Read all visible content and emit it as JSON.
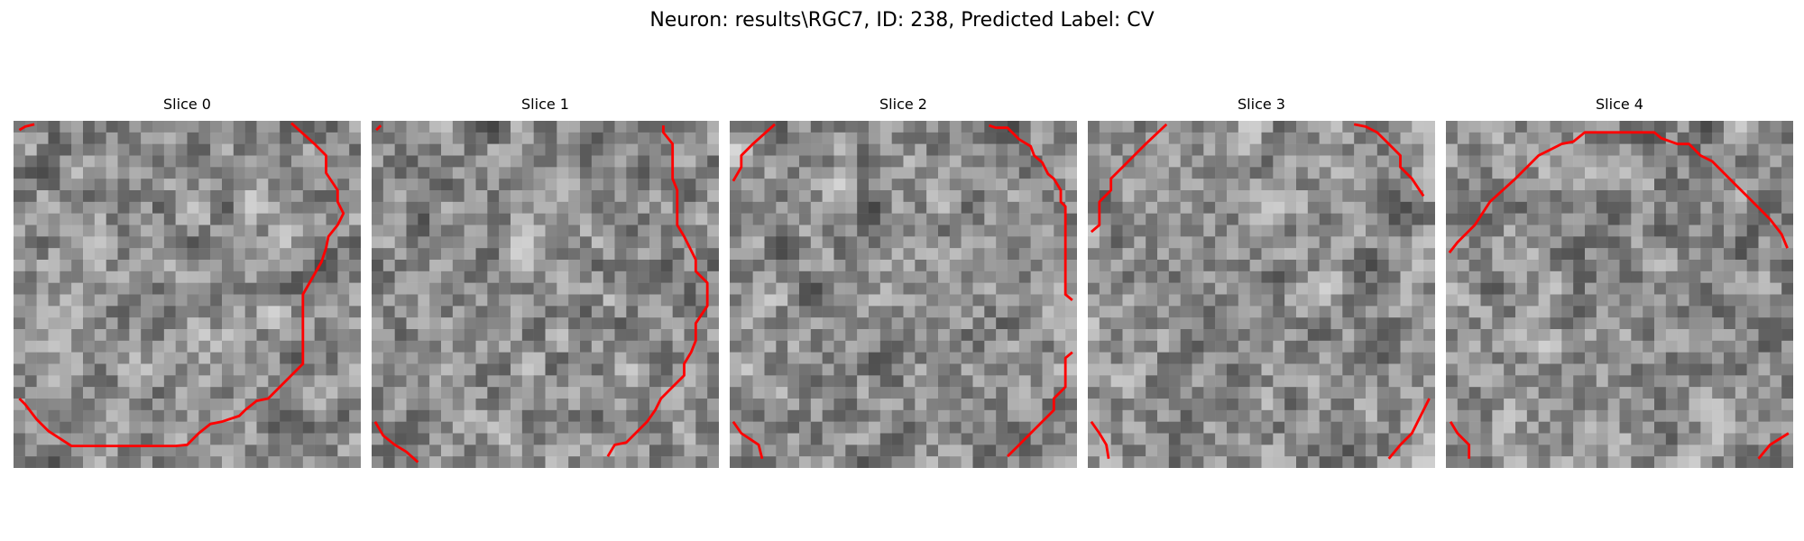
{
  "figure": {
    "title": "Neuron: results\\RGC7, ID: 238, Predicted Label: CV"
  },
  "slices": [
    {
      "label": "Slice 0"
    },
    {
      "label": "Slice 1"
    },
    {
      "label": "Slice 2"
    },
    {
      "label": "Slice 3"
    },
    {
      "label": "Slice 4"
    }
  ],
  "colors": {
    "contour": "#ff0000",
    "background": "#ffffff"
  }
}
